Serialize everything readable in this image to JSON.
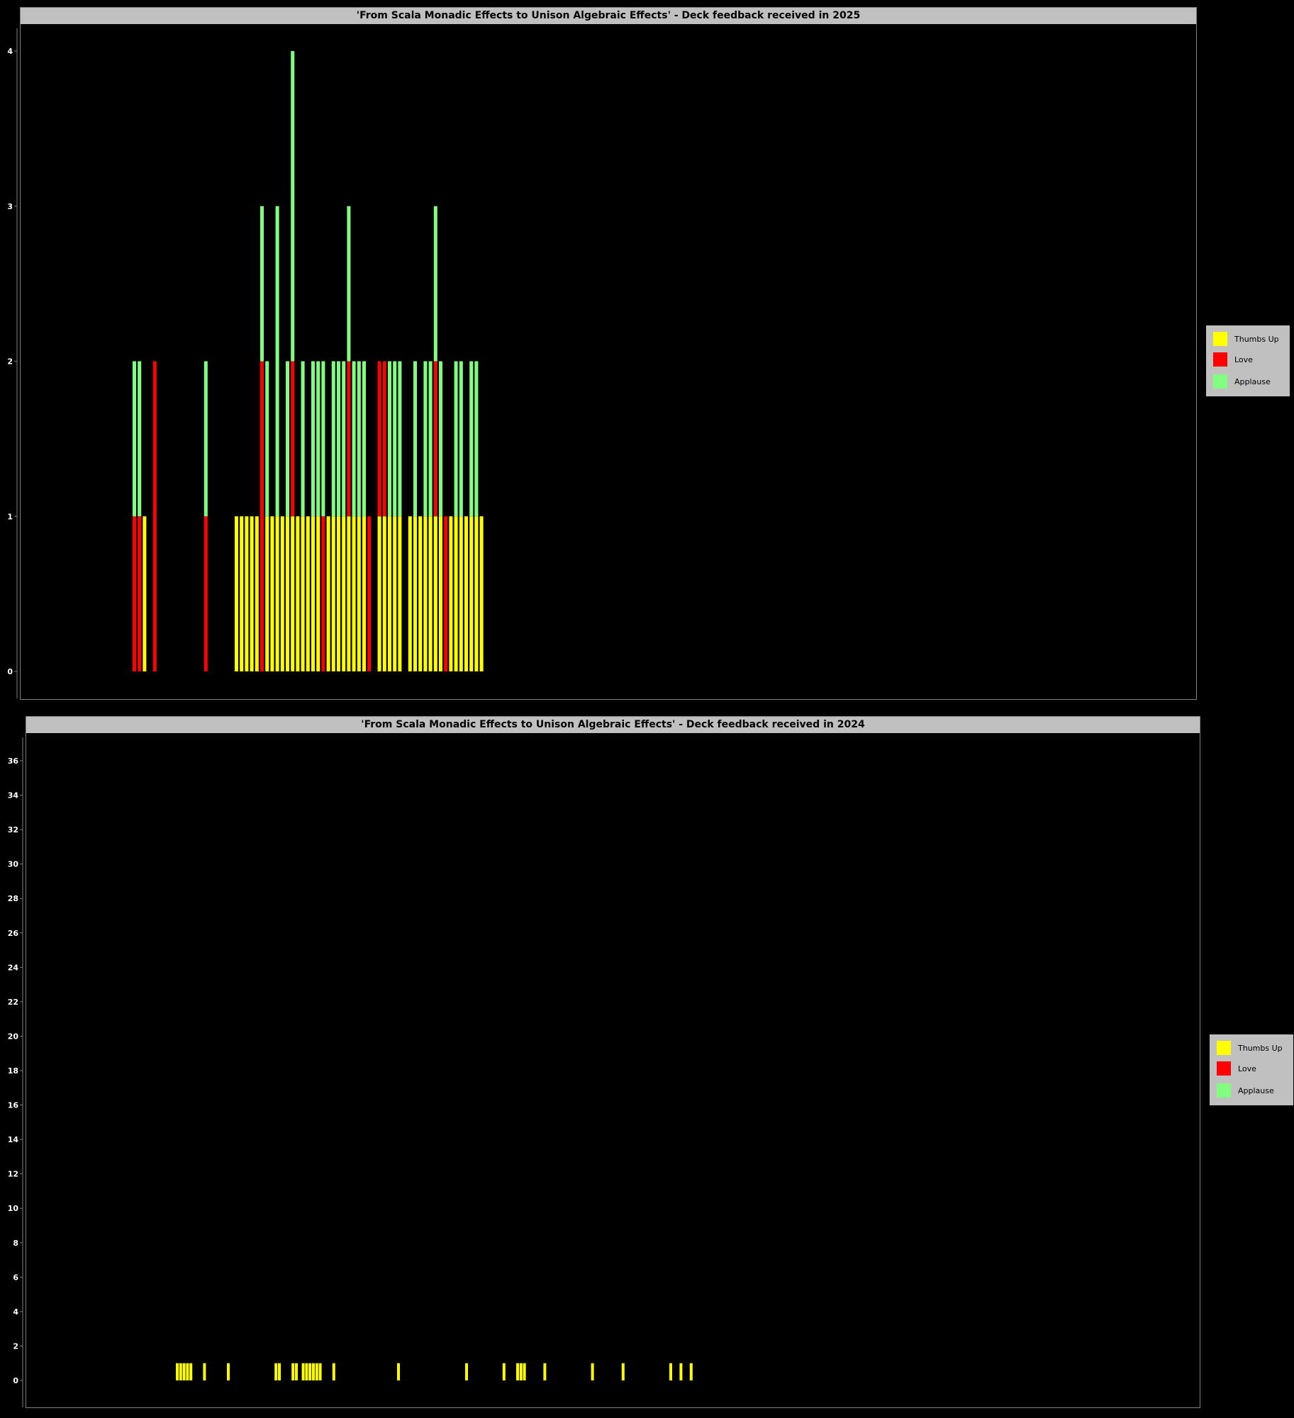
{
  "colors": {
    "background": "#000000",
    "thumbs_up": "#ffff00",
    "love": "#ff0000",
    "applause": "#80ff80",
    "frame": "#c0c0c0"
  },
  "legend": {
    "items": [
      "Thumbs Up",
      "Love",
      "Applause"
    ]
  },
  "chart_data": [
    {
      "type": "bar",
      "stacked": true,
      "title": "'From Scala Monadic Effects to Unison Algebraic Effects' - Deck feedback received in 2025",
      "xlabel": "",
      "ylabel": "",
      "ylim": [
        0,
        4
      ],
      "yticks": [
        0,
        1,
        2,
        3,
        4
      ],
      "legend_position": "right",
      "series": [
        {
          "name": "Thumbs Up",
          "color": "#ffff00",
          "values": [
            0,
            0,
            1,
            0,
            0,
            0,
            0,
            0,
            0,
            0,
            0,
            0,
            0,
            0,
            0,
            0,
            0,
            0,
            0,
            0,
            1,
            1,
            1,
            1,
            1,
            0,
            1,
            1,
            1,
            1,
            1,
            1,
            1,
            1,
            1,
            1,
            1,
            0,
            1,
            1,
            1,
            1,
            1,
            1,
            1,
            1,
            0,
            0,
            1,
            1,
            1,
            1,
            1,
            0,
            1,
            1,
            1,
            1,
            1,
            1,
            1,
            0,
            1,
            1,
            1,
            1,
            1,
            1,
            1
          ]
        },
        {
          "name": "Love",
          "color": "#ff0000",
          "values": [
            1,
            1,
            0,
            0,
            2,
            0,
            0,
            0,
            0,
            0,
            0,
            0,
            0,
            0,
            1,
            0,
            0,
            0,
            0,
            0,
            0,
            0,
            0,
            0,
            0,
            2,
            0,
            0,
            0,
            0,
            0,
            1,
            0,
            0,
            0,
            0,
            0,
            1,
            0,
            0,
            0,
            0,
            1,
            0,
            0,
            0,
            1,
            0,
            1,
            1,
            0,
            0,
            0,
            0,
            0,
            0,
            0,
            0,
            0,
            1,
            0,
            1,
            0,
            0,
            0,
            0,
            0,
            0,
            0
          ]
        },
        {
          "name": "Applause",
          "color": "#80ff80",
          "values": [
            1,
            1,
            0,
            0,
            0,
            0,
            0,
            0,
            0,
            0,
            0,
            0,
            0,
            0,
            1,
            0,
            0,
            0,
            0,
            0,
            0,
            0,
            0,
            0,
            0,
            1,
            1,
            0,
            2,
            0,
            1,
            2,
            0,
            1,
            0,
            1,
            1,
            1,
            0,
            1,
            1,
            1,
            1,
            1,
            1,
            1,
            0,
            0,
            0,
            0,
            1,
            1,
            1,
            0,
            0,
            1,
            0,
            1,
            1,
            1,
            1,
            0,
            0,
            1,
            1,
            0,
            1,
            1,
            0
          ]
        }
      ]
    },
    {
      "type": "bar",
      "stacked": true,
      "title": "'From Scala Monadic Effects to Unison Algebraic Effects' - Deck feedback received in 2024",
      "xlabel": "",
      "ylabel": "",
      "ylim": [
        0,
        37
      ],
      "yticks": [
        0,
        2,
        4,
        6,
        8,
        10,
        12,
        14,
        16,
        18,
        20,
        22,
        24,
        26,
        28,
        30,
        32,
        34,
        36
      ],
      "legend_position": "right",
      "series": [
        {
          "name": "Thumbs Up",
          "color": "#ffff00",
          "values": [
            1,
            1,
            1,
            1,
            1,
            0,
            0,
            0,
            1,
            0,
            0,
            0,
            0,
            0,
            0,
            1,
            0,
            0,
            0,
            0,
            0,
            0,
            0,
            0,
            0,
            0,
            0,
            0,
            0,
            1,
            1,
            0,
            0,
            0,
            1,
            1,
            0,
            1,
            1,
            1,
            1,
            1,
            1,
            0,
            0,
            0,
            1,
            0,
            0,
            0,
            0,
            0,
            0,
            0,
            0,
            0,
            0,
            0,
            0,
            0,
            0,
            0,
            0,
            0,
            0,
            1,
            0,
            0,
            0,
            0,
            0,
            0,
            0,
            0,
            0,
            0,
            0,
            0,
            0,
            0,
            0,
            0,
            0,
            0,
            0,
            1,
            0,
            0,
            0,
            0,
            0,
            0,
            0,
            0,
            0,
            0,
            1,
            0,
            0,
            0,
            1,
            1,
            1,
            0,
            0,
            0,
            0,
            0,
            1,
            0,
            0,
            0,
            0,
            0,
            0,
            0,
            0,
            0,
            0,
            0,
            0,
            0,
            1,
            0,
            0,
            0,
            0,
            0,
            0,
            0,
            0,
            1,
            0,
            0,
            0,
            0,
            0,
            0,
            0,
            0,
            0,
            0,
            0,
            0,
            0,
            1,
            0,
            0,
            1,
            0,
            0,
            1,
            0,
            0,
            0,
            0,
            0,
            0,
            0,
            0,
            0,
            0,
            0,
            0,
            0,
            0,
            0,
            0,
            0,
            0,
            0,
            0,
            0,
            0,
            0,
            0,
            0,
            0,
            0,
            0,
            0,
            0,
            0,
            0,
            0,
            0,
            0,
            0,
            0,
            0,
            0,
            0,
            0,
            0,
            0,
            0,
            0,
            0,
            0,
            0,
            0,
            0,
            0,
            0,
            0,
            0,
            0,
            0,
            0,
            0,
            0,
            0,
            0,
            0,
            0,
            0,
            0,
            0,
            0,
            0,
            0,
            0,
            0,
            0,
            0,
            0,
            0
          ]
        },
        {
          "name": "Love",
          "color": "#ff0000",
          "values": [
            0,
            0,
            0,
            0,
            0,
            0,
            0,
            0,
            0,
            0,
            0,
            0,
            0,
            0,
            0,
            0,
            0,
            0,
            0,
            0,
            0,
            0,
            0,
            0,
            0,
            0,
            0,
            0,
            0,
            0,
            0,
            0,
            0,
            0,
            0,
            0,
            0,
            0,
            0,
            0,
            0,
            0,
            0,
            0,
            0,
            0,
            0,
            0,
            0,
            0,
            0,
            0,
            0,
            0,
            0,
            0,
            0,
            0,
            0,
            0,
            0,
            0,
            0,
            0,
            0,
            0,
            0,
            0,
            0,
            0,
            0,
            0,
            0,
            0,
            0,
            0,
            0,
            0,
            0,
            0,
            0,
            0,
            0,
            0,
            0,
            0,
            0,
            0,
            0,
            0,
            0,
            0,
            0,
            0,
            0,
            0,
            0,
            0,
            0,
            0,
            0,
            0,
            0,
            0,
            0,
            0,
            0,
            0,
            0,
            0,
            0,
            0,
            0,
            0,
            0,
            0,
            0,
            0,
            0,
            0,
            0,
            0,
            0,
            0,
            0,
            0,
            0,
            0,
            0,
            0,
            0,
            0,
            0,
            0,
            0,
            0,
            0,
            0,
            0,
            0,
            0,
            0,
            0,
            0,
            0,
            0,
            0,
            0,
            0,
            0,
            0,
            0,
            0,
            0,
            0,
            0,
            0,
            0,
            0,
            0,
            0,
            0,
            0,
            0,
            0,
            0,
            0,
            0,
            0,
            0,
            0,
            0,
            0,
            0,
            0,
            0,
            0,
            0,
            0,
            0,
            0,
            0,
            0,
            0,
            0,
            0,
            0,
            0,
            0,
            0,
            0,
            0,
            0,
            0,
            0,
            0,
            0,
            0,
            0,
            0,
            0,
            0,
            0,
            0,
            0,
            0,
            0,
            0,
            0,
            0,
            0,
            0,
            0,
            0,
            0,
            0,
            0,
            0,
            0,
            0,
            0,
            0,
            0,
            0,
            0,
            0,
            0,
            0,
            0,
            0,
            0,
            0,
            0,
            0,
            0,
            0,
            0,
            0
          ]
        },
        {
          "name": "Applause",
          "color": "#80ff80",
          "values": [
            0,
            0,
            0,
            0,
            0,
            0,
            0,
            0,
            0,
            0,
            0,
            0,
            0,
            0,
            0,
            0,
            0,
            0,
            0,
            0,
            0,
            0,
            0,
            0,
            0,
            0,
            0,
            0,
            0,
            0,
            0,
            0,
            0,
            0,
            0,
            0,
            0,
            0,
            0,
            0,
            0,
            0,
            0,
            0,
            0,
            0,
            0,
            0,
            0,
            0,
            0,
            0,
            0,
            0,
            0,
            0,
            0,
            0,
            0,
            0,
            0,
            0,
            0,
            0,
            0,
            0,
            0,
            0,
            0,
            0,
            0,
            0,
            0,
            0,
            0,
            0,
            0,
            0,
            0,
            0,
            0,
            0,
            0,
            0,
            0,
            0,
            0,
            0,
            0,
            0,
            0,
            0,
            0,
            0,
            0,
            0,
            0,
            0,
            0,
            0,
            0,
            0,
            0,
            0,
            0,
            0,
            0,
            0,
            0,
            0,
            0,
            0,
            0,
            0,
            0,
            0,
            0,
            0,
            0,
            0,
            0,
            0,
            0,
            0,
            0,
            0,
            0,
            0,
            0,
            0,
            0,
            0,
            0,
            0,
            0,
            0,
            0,
            0,
            0,
            0,
            0,
            0,
            0,
            0,
            0,
            0,
            0,
            0,
            0,
            0,
            0,
            0,
            0,
            0,
            0,
            0,
            0,
            0,
            0,
            0,
            0,
            0,
            0,
            0,
            0,
            0,
            0,
            0,
            0,
            0,
            0,
            0,
            0,
            0,
            0,
            0,
            0,
            0,
            0,
            0,
            0,
            0,
            0,
            0,
            0,
            0,
            0,
            0,
            0,
            0,
            0,
            0,
            0,
            0,
            0,
            0,
            0,
            0,
            0,
            0,
            0,
            0,
            0,
            0,
            0,
            0,
            0,
            0,
            0,
            0,
            0,
            0,
            0,
            0,
            0,
            0,
            0,
            0,
            0,
            0,
            0,
            0,
            0,
            0,
            0,
            0,
            0,
            0,
            0,
            0,
            0,
            0,
            0,
            0,
            0,
            0,
            0,
            0
          ]
        }
      ]
    }
  ]
}
